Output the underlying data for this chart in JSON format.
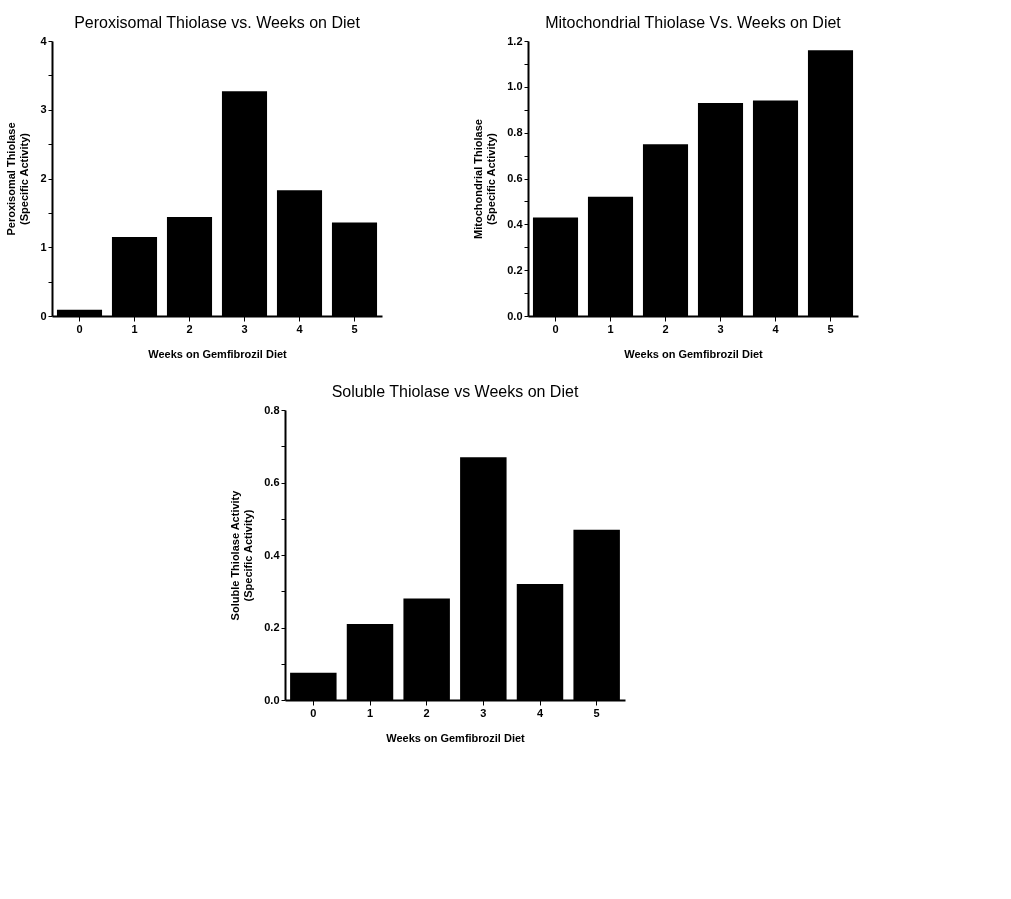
{
  "chart_data": [
    {
      "type": "bar",
      "title": "Peroxisomal Thiolase vs. Weeks on Diet",
      "xlabel": "Weeks on Gemfibrozil Diet",
      "ylabel": "Peroxisomal Thiolase\n(Specific Activity)",
      "categories": [
        "0",
        "1",
        "2",
        "3",
        "4",
        "5"
      ],
      "values": [
        0.09,
        1.15,
        1.44,
        3.27,
        1.83,
        1.36
      ],
      "color": "#000000",
      "ylim": [
        0,
        4
      ],
      "yticks": [
        0,
        {
          "value": 0.5,
          "label": null
        },
        1,
        {
          "value": 1.5,
          "label": null
        },
        2,
        {
          "value": 2.5,
          "label": null
        },
        3,
        {
          "value": 3.5,
          "label": null
        },
        4
      ],
      "grid": false,
      "legend": false
    },
    {
      "type": "bar",
      "title": "Mitochondrial Thiolase Vs. Weeks on Diet",
      "xlabel": "Weeks on Gemfibrozil Diet",
      "ylabel": "Mitochondrial Thiolase\n(Specific Activity)",
      "categories": [
        "0",
        "1",
        "2",
        "3",
        "4",
        "5"
      ],
      "values": [
        0.43,
        0.52,
        0.75,
        0.93,
        0.94,
        1.16
      ],
      "color": "#000000",
      "ylim": [
        0,
        1.2
      ],
      "yticks": [
        {
          "value": 0,
          "label": "0.0"
        },
        {
          "value": 0.1,
          "label": null
        },
        {
          "value": 0.2,
          "label": "0.2"
        },
        {
          "value": 0.3,
          "label": null
        },
        {
          "value": 0.4,
          "label": "0.4"
        },
        {
          "value": 0.5,
          "label": null
        },
        {
          "value": 0.6,
          "label": "0.6"
        },
        {
          "value": 0.7,
          "label": null
        },
        {
          "value": 0.8,
          "label": "0.8"
        },
        {
          "value": 0.9,
          "label": null
        },
        {
          "value": 1,
          "label": "1.0"
        },
        {
          "value": 1.1,
          "label": null
        },
        {
          "value": 1.2,
          "label": "1.2"
        }
      ],
      "grid": false,
      "legend": false
    },
    {
      "type": "bar",
      "title": "Soluble Thiolase vs Weeks on Diet",
      "xlabel": "Weeks on Gemfibrozil Diet",
      "ylabel": "Soluble Thiolase Activity\n(Specific Activity)",
      "categories": [
        "0",
        "1",
        "2",
        "3",
        "4",
        "5"
      ],
      "values": [
        0.075,
        0.21,
        0.28,
        0.67,
        0.32,
        0.47
      ],
      "color": "#000000",
      "ylim": [
        0,
        0.8
      ],
      "yticks": [
        {
          "value": 0,
          "label": "0.0"
        },
        {
          "value": 0.1,
          "label": null
        },
        {
          "value": 0.2,
          "label": "0.2"
        },
        {
          "value": 0.3,
          "label": null
        },
        {
          "value": 0.4,
          "label": "0.4"
        },
        {
          "value": 0.5,
          "label": null
        },
        {
          "value": 0.6,
          "label": "0.6"
        },
        {
          "value": 0.7,
          "label": null
        },
        {
          "value": 0.8,
          "label": "0.8"
        }
      ],
      "grid": false,
      "legend": false
    }
  ]
}
